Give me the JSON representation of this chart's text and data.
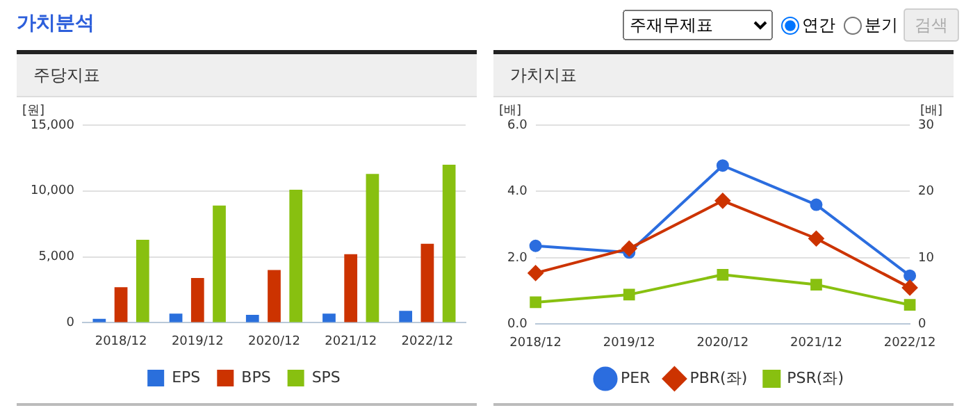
{
  "chart_data": [
    {
      "type": "other",
      "title": "가치분석",
      "annotations": [
        "주재무제표",
        "연간",
        "분기",
        "검색"
      ]
    },
    {
      "type": "bar",
      "title": "주당지표",
      "ylabel": "[원]",
      "categories": [
        "2018/12",
        "2019/12",
        "2020/12",
        "2021/12",
        "2022/12"
      ],
      "series": [
        {
          "name": "EPS",
          "color": "#2a6fdc",
          "values": [
            300,
            700,
            600,
            700,
            900
          ]
        },
        {
          "name": "BPS",
          "color": "#cc3300",
          "values": [
            2700,
            3400,
            4000,
            5200,
            6000
          ]
        },
        {
          "name": "SPS",
          "color": "#88c010",
          "values": [
            6300,
            8900,
            10100,
            11300,
            12000
          ]
        }
      ],
      "ylim": [
        0,
        15000
      ],
      "yticks": [
        0,
        {
          "value": 5000,
          "label": "5,000"
        },
        {
          "value": 10000,
          "label": "10,000"
        },
        {
          "value": 15000,
          "label": "15,000"
        }
      ],
      "grid": "y",
      "legend": "bottom"
    },
    {
      "type": "line",
      "title": "가치지표",
      "ylabel": "[배]",
      "y2label": "[배]",
      "categories": [
        "2018/12",
        "2019/12",
        "2020/12",
        "2021/12",
        "2022/12"
      ],
      "series": [
        {
          "name": "PER",
          "color": "#2b6ddf",
          "axis": "y2",
          "marker": "circle",
          "values": [
            11.8,
            10.8,
            23.9,
            18.0,
            7.3
          ]
        },
        {
          "name": "PBR(좌)",
          "color": "#cc3300",
          "marker": "diamond",
          "values": [
            1.54,
            2.28,
            3.72,
            2.58,
            1.1
          ]
        },
        {
          "name": "PSR(좌)",
          "color": "#88c010",
          "marker": "square",
          "values": [
            0.66,
            0.89,
            1.49,
            1.19,
            0.58
          ]
        }
      ],
      "ylim": [
        0,
        6
      ],
      "yticks": [
        {
          "value": 0,
          "label": "0.0"
        },
        {
          "value": 2,
          "label": "2.0"
        },
        {
          "value": 4,
          "label": "4.0"
        },
        {
          "value": 6,
          "label": "6.0"
        }
      ],
      "y2lim": [
        0,
        30
      ],
      "y2ticks": [
        0,
        10,
        20,
        30
      ],
      "grid": "y",
      "legend": "bottom"
    }
  ]
}
